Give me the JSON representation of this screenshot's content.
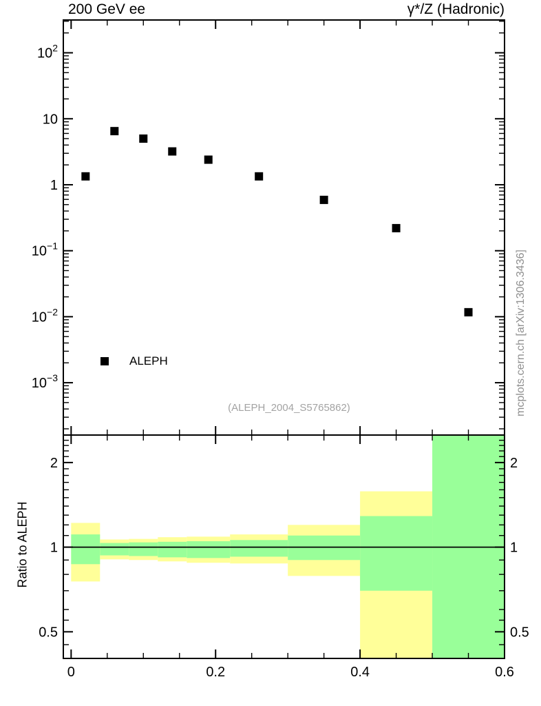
{
  "header": {
    "title_left": "200 GeV ee",
    "title_right": "γ*/Z (Hadronic)"
  },
  "legend": {
    "label": "ALEPH",
    "marker": "filled-black-square"
  },
  "annotations": {
    "watermark": "(ALEPH_2004_S5765862)",
    "side_note": "mcplots.cern.ch [arXiv:1306.3436]"
  },
  "colors": {
    "outer_band": "#ffff99",
    "inner_band": "#99ff99",
    "marker": "#000000",
    "frame": "#000000",
    "reference_line": "#000000",
    "watermark_text": "#a3a3a3",
    "side_note_text": "#8f8f8f",
    "background": "#ffffff"
  },
  "chart_data": [
    {
      "id": "main",
      "type": "scatter",
      "title_left": "200 GeV ee",
      "title_right": "γ*/Z (Hadronic)",
      "xscale": "linear",
      "yscale": "log",
      "xlim": [
        -0.0108,
        0.6
      ],
      "ylim": [
        0.000161,
        314
      ],
      "grid": false,
      "legend_position": "lower-left",
      "bin_edges": [
        0,
        0.04,
        0.08,
        0.12,
        0.16,
        0.22,
        0.3,
        0.4,
        0.5,
        0.6
      ],
      "x": [
        0.02,
        0.06,
        0.1,
        0.14,
        0.19,
        0.26,
        0.35,
        0.45,
        0.55
      ],
      "series": [
        {
          "name": "ALEPH",
          "marker": "filled-square",
          "color": "#000000",
          "values": [
            1.34,
            6.5,
            5.0,
            3.2,
            2.4,
            1.34,
            0.59,
            0.22,
            0.0117
          ]
        }
      ],
      "yticks_labeled": [
        {
          "value": 100,
          "mantissa": "10",
          "exponent": "2"
        },
        {
          "value": 10,
          "mantissa": "10",
          "exponent": ""
        },
        {
          "value": 1,
          "mantissa": "1",
          "exponent": ""
        },
        {
          "value": 0.1,
          "mantissa": "10",
          "exponent": "−1"
        },
        {
          "value": 0.01,
          "mantissa": "10",
          "exponent": "−2"
        },
        {
          "value": 0.001,
          "mantissa": "10",
          "exponent": "−3"
        }
      ],
      "xticks_major": [
        0,
        0.2,
        0.4,
        0.6
      ],
      "xtick_minor_step": 0.05
    },
    {
      "id": "ratio",
      "type": "band",
      "ylabel": "Ratio to ALEPH",
      "yscale": "log",
      "xlim": [
        -0.0108,
        0.6
      ],
      "ylim": [
        0.402,
        2.505
      ],
      "grid": false,
      "reference_line": 1,
      "bin_edges": [
        0,
        0.04,
        0.08,
        0.12,
        0.16,
        0.22,
        0.3,
        0.4,
        0.5,
        0.6
      ],
      "bands": [
        {
          "x": [
            0.0,
            0.04
          ],
          "outer": [
            0.755,
            1.22
          ],
          "inner": [
            0.87,
            1.11
          ]
        },
        {
          "x": [
            0.04,
            0.08
          ],
          "outer": [
            0.905,
            1.065
          ],
          "inner": [
            0.935,
            1.035
          ]
        },
        {
          "x": [
            0.08,
            0.12
          ],
          "outer": [
            0.9,
            1.07
          ],
          "inner": [
            0.93,
            1.04
          ]
        },
        {
          "x": [
            0.12,
            0.16
          ],
          "outer": [
            0.89,
            1.085
          ],
          "inner": [
            0.92,
            1.045
          ]
        },
        {
          "x": [
            0.16,
            0.22
          ],
          "outer": [
            0.88,
            1.09
          ],
          "inner": [
            0.915,
            1.05
          ]
        },
        {
          "x": [
            0.22,
            0.3
          ],
          "outer": [
            0.875,
            1.11
          ],
          "inner": [
            0.925,
            1.06
          ]
        },
        {
          "x": [
            0.3,
            0.4
          ],
          "outer": [
            0.79,
            1.2
          ],
          "inner": [
            0.9,
            1.1
          ]
        },
        {
          "x": [
            0.4,
            0.5
          ],
          "outer": [
            0.36,
            1.58
          ],
          "inner": [
            0.7,
            1.29
          ]
        },
        {
          "x": [
            0.5,
            0.6
          ],
          "outer": [
            0.36,
            2.6
          ],
          "inner": [
            0.36,
            2.6
          ]
        }
      ],
      "yticks_labeled": [
        {
          "value": 2,
          "label": "2"
        },
        {
          "value": 1,
          "label": "1"
        },
        {
          "value": 0.5,
          "label": "0.5"
        }
      ],
      "yticks_minor": [
        0.4,
        0.45,
        0.55,
        0.6,
        0.7,
        0.8,
        0.9,
        1.1,
        1.2,
        1.3,
        1.4,
        1.5,
        1.6,
        1.7,
        1.8,
        1.9,
        2.1,
        2.2,
        2.3,
        2.4
      ],
      "xticks_labeled": [
        {
          "value": 0,
          "label": "0"
        },
        {
          "value": 0.2,
          "label": "0.2"
        },
        {
          "value": 0.4,
          "label": "0.4"
        },
        {
          "value": 0.6,
          "label": "0.6"
        }
      ],
      "xtick_minor_step": 0.05
    }
  ]
}
